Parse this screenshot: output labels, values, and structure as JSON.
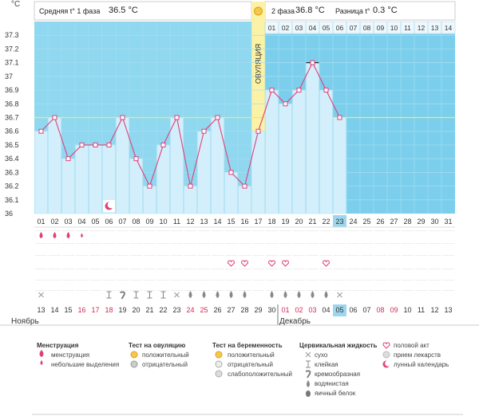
{
  "header": {
    "unit": "°C",
    "phase1_label": "Средняя t° 1 фаза",
    "phase1_value": "36.5 °C",
    "phase2_label": "2 фаза",
    "phase2_value": "36.8 °C",
    "diff_label": "Разница t°",
    "diff_value": "0.3 °C",
    "ovulation_label": "ОВУЛЯЦИЯ"
  },
  "colors": {
    "phase1_bg": "#8fd8f0",
    "phase2_bg": "#7ccfec",
    "bar_fill": "#d2effb",
    "line": "#e0407a",
    "marker_border": "#e0407a",
    "ovulation_band": "#fbf2a6",
    "coverline": "#f2ea6a",
    "highlight_day": "#9dd6ee"
  },
  "chart_data": {
    "type": "line",
    "title": "",
    "ylabel": "°C",
    "xlabel": "",
    "ylim": [
      36.0,
      37.4
    ],
    "y_ticks": [
      "36",
      "36.1",
      "36.2",
      "36.3",
      "36.4",
      "36.5",
      "36.6",
      "36.7",
      "36.8",
      "36.9",
      "37",
      "37.1",
      "37.2",
      "37.3"
    ],
    "coverline": 36.7,
    "ovulation_day": 17,
    "current_day": 23,
    "days": [
      "01",
      "02",
      "03",
      "04",
      "05",
      "06",
      "07",
      "08",
      "09",
      "10",
      "11",
      "12",
      "13",
      "14",
      "15",
      "16",
      "17",
      "18",
      "19",
      "20",
      "21",
      "22",
      "23",
      "24",
      "25",
      "26",
      "27",
      "28",
      "29",
      "30",
      "31"
    ],
    "phase2_days": [
      "01",
      "02",
      "03",
      "04",
      "05",
      "06",
      "07",
      "08",
      "09",
      "10",
      "11",
      "12",
      "13",
      "14"
    ],
    "temperatures": [
      36.6,
      36.7,
      36.4,
      36.5,
      36.5,
      36.5,
      36.7,
      36.4,
      36.2,
      36.5,
      36.7,
      36.2,
      36.6,
      36.7,
      36.3,
      36.2,
      36.6,
      36.9,
      36.8,
      36.9,
      37.1,
      36.9,
      36.7
    ],
    "temperature_max_day": 21,
    "moon_day": 6
  },
  "symptoms": {
    "menstruation": [
      "big",
      "big",
      "big",
      "small",
      "",
      "",
      "",
      "",
      "",
      "",
      "",
      "",
      "",
      "",
      "",
      "",
      "",
      "",
      "",
      "",
      "",
      "",
      "",
      "",
      "",
      "",
      "",
      "",
      "",
      "",
      ""
    ],
    "sex": [
      "",
      "",
      "",
      "",
      "",
      "",
      "",
      "",
      "",
      "",
      "",
      "",
      "",
      "",
      "",
      "",
      "",
      "",
      "",
      "",
      "",
      "",
      "",
      "",
      "",
      "",
      "",
      "",
      "",
      "",
      ""
    ],
    "cervical": [
      "dry",
      "",
      "",
      "",
      "",
      "sticky",
      "creamy",
      "sticky",
      "sticky",
      "sticky",
      "dry",
      "watery",
      "watery",
      "watery",
      "watery",
      "watery",
      "",
      "watery",
      "watery",
      "watery",
      "watery",
      "watery",
      "dry",
      "",
      "",
      "",
      "",
      "",
      "",
      "",
      ""
    ]
  },
  "sex_days": [
    15,
    16,
    18,
    19,
    22
  ],
  "dates": [
    "13",
    "14",
    "15",
    "16",
    "17",
    "18",
    "19",
    "20",
    "21",
    "22",
    "23",
    "24",
    "25",
    "26",
    "27",
    "28",
    "29",
    "30",
    "01",
    "02",
    "03",
    "04",
    "05",
    "06",
    "07",
    "08",
    "09",
    "10",
    "11",
    "12",
    "13"
  ],
  "date_red": [
    false,
    false,
    false,
    true,
    true,
    true,
    false,
    false,
    false,
    false,
    false,
    true,
    true,
    false,
    false,
    false,
    false,
    false,
    true,
    true,
    true,
    false,
    false,
    false,
    false,
    true,
    true,
    false,
    false,
    false,
    false
  ],
  "months": {
    "first": "Ноябрь",
    "second": "Декабрь"
  },
  "legend": {
    "menstruation": {
      "title": "Менструация",
      "items": [
        "менструация",
        "небольшие выделения"
      ]
    },
    "ovulation_test": {
      "title": "Тест на овуляцию",
      "items": [
        "положительный",
        "отрицательный"
      ]
    },
    "pregnancy_test": {
      "title": "Тест на беременность",
      "items": [
        "положительный",
        "отрицательный",
        "слабоположительный"
      ]
    },
    "cervical_fluid": {
      "title": "Цервикальная жидкость",
      "items": [
        "сухо",
        "клейкая",
        "кремообразная",
        "водянистая",
        "яичный белок"
      ]
    },
    "other": {
      "items": [
        "половой акт",
        "прием лекарств",
        "лунный календарь"
      ]
    }
  }
}
